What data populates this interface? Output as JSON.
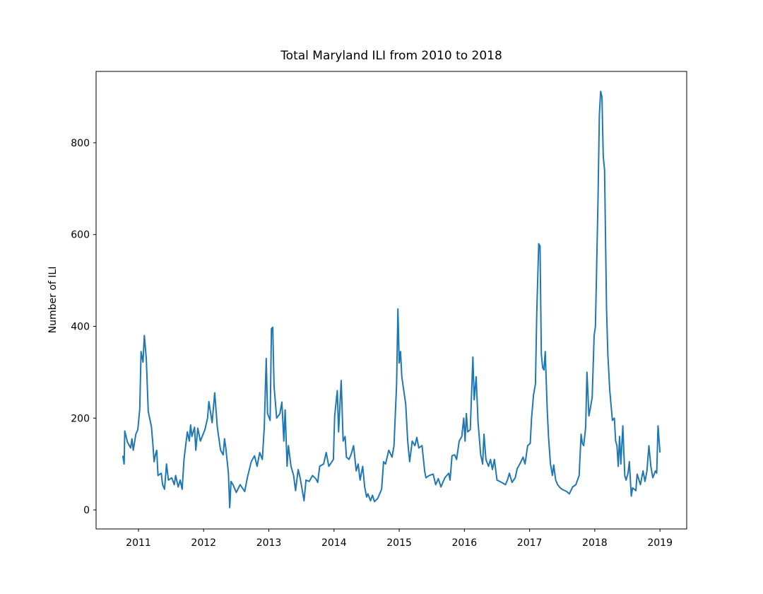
{
  "chart_data": {
    "type": "line",
    "title": "Total Maryland ILI from 2010 to 2018",
    "ylabel": "Number of ILI",
    "color": "#1f77b4",
    "xlim": [
      2010.35,
      2019.41
    ],
    "xticks": [
      2011,
      2012,
      2013,
      2014,
      2015,
      2016,
      2017,
      2018,
      2019
    ],
    "ylim": [
      -41.5,
      955.5
    ],
    "yticks": [
      0,
      200,
      400,
      600,
      800
    ],
    "x": [
      2010.76,
      2010.78,
      2010.79,
      2010.83,
      2010.88,
      2010.9,
      2010.92,
      2010.96,
      2010.99,
      2011.02,
      2011.04,
      2011.07,
      2011.09,
      2011.12,
      2011.15,
      2011.2,
      2011.22,
      2011.24,
      2011.26,
      2011.28,
      2011.3,
      2011.35,
      2011.37,
      2011.4,
      2011.43,
      2011.46,
      2011.51,
      2011.55,
      2011.57,
      2011.61,
      2011.64,
      2011.67,
      2011.7,
      2011.75,
      2011.78,
      2011.8,
      2011.82,
      2011.86,
      2011.88,
      2011.91,
      2011.95,
      2012.02,
      2012.06,
      2012.08,
      2012.13,
      2012.17,
      2012.21,
      2012.26,
      2012.3,
      2012.32,
      2012.34,
      2012.38,
      2012.4,
      2012.42,
      2012.45,
      2012.5,
      2012.56,
      2012.63,
      2012.67,
      2012.73,
      2012.78,
      2012.82,
      2012.86,
      2012.9,
      2012.93,
      2012.96,
      2012.98,
      2013.02,
      2013.04,
      2013.06,
      2013.08,
      2013.12,
      2013.17,
      2013.2,
      2013.23,
      2013.25,
      2013.28,
      2013.3,
      2013.34,
      2013.38,
      2013.41,
      2013.45,
      2013.48,
      2013.54,
      2013.57,
      2013.62,
      2013.67,
      2013.72,
      2013.75,
      2013.78,
      2013.84,
      2013.88,
      2013.92,
      2013.99,
      2014.01,
      2014.05,
      2014.07,
      2014.11,
      2014.14,
      2014.17,
      2014.19,
      2014.23,
      2014.26,
      2014.3,
      2014.34,
      2014.37,
      2014.4,
      2014.44,
      2014.47,
      2014.5,
      2014.52,
      2014.56,
      2014.59,
      2014.62,
      2014.67,
      2014.73,
      2014.76,
      2014.79,
      2014.84,
      2014.89,
      2014.92,
      2014.96,
      2014.98,
      2015.0,
      2015.02,
      2015.04,
      2015.1,
      2015.13,
      2015.16,
      2015.2,
      2015.24,
      2015.27,
      2015.3,
      2015.35,
      2015.39,
      2015.41,
      2015.46,
      2015.52,
      2015.56,
      2015.6,
      2015.64,
      2015.7,
      2015.76,
      2015.78,
      2015.81,
      2015.85,
      2015.88,
      2015.92,
      2015.96,
      2015.99,
      2016.01,
      2016.03,
      2016.05,
      2016.09,
      2016.13,
      2016.15,
      2016.18,
      2016.21,
      2016.25,
      2016.28,
      2016.3,
      2016.33,
      2016.37,
      2016.4,
      2016.43,
      2016.46,
      2016.5,
      2016.57,
      2016.63,
      2016.66,
      2016.69,
      2016.73,
      2016.78,
      2016.81,
      2016.85,
      2016.9,
      2016.93,
      2016.97,
      2017.01,
      2017.03,
      2017.06,
      2017.09,
      2017.11,
      2017.14,
      2017.16,
      2017.18,
      2017.2,
      2017.22,
      2017.24,
      2017.27,
      2017.29,
      2017.32,
      2017.35,
      2017.37,
      2017.4,
      2017.43,
      2017.47,
      2017.51,
      2017.57,
      2017.61,
      2017.66,
      2017.71,
      2017.76,
      2017.79,
      2017.81,
      2017.83,
      2017.86,
      2017.88,
      2017.91,
      2017.93,
      2017.96,
      2017.99,
      2018.01,
      2018.05,
      2018.07,
      2018.09,
      2018.11,
      2018.13,
      2018.15,
      2018.18,
      2018.2,
      2018.23,
      2018.27,
      2018.3,
      2018.32,
      2018.34,
      2018.36,
      2018.38,
      2018.4,
      2018.43,
      2018.46,
      2018.48,
      2018.51,
      2018.53,
      2018.56,
      2018.58,
      2018.63,
      2018.65,
      2018.7,
      2018.74,
      2018.77,
      2018.8,
      2018.83,
      2018.86,
      2018.89,
      2018.93,
      2018.95,
      2018.97,
      2019.0
    ],
    "values": [
      118,
      100,
      172,
      148,
      135,
      155,
      130,
      165,
      175,
      220,
      345,
      322,
      380,
      330,
      215,
      180,
      145,
      105,
      120,
      130,
      75,
      80,
      55,
      45,
      100,
      65,
      70,
      55,
      75,
      50,
      65,
      45,
      112,
      170,
      150,
      185,
      160,
      180,
      130,
      178,
      150,
      175,
      200,
      236,
      190,
      255,
      180,
      130,
      120,
      155,
      135,
      80,
      5,
      62,
      55,
      38,
      55,
      40,
      70,
      105,
      118,
      95,
      125,
      110,
      180,
      330,
      210,
      195,
      395,
      398,
      270,
      200,
      210,
      235,
      150,
      218,
      95,
      140,
      95,
      75,
      42,
      88,
      70,
      20,
      65,
      62,
      75,
      68,
      60,
      95,
      100,
      125,
      95,
      110,
      205,
      260,
      170,
      282,
      150,
      160,
      115,
      110,
      120,
      140,
      85,
      100,
      65,
      95,
      50,
      28,
      35,
      20,
      32,
      18,
      25,
      45,
      105,
      100,
      130,
      115,
      140,
      275,
      438,
      320,
      345,
      290,
      230,
      150,
      105,
      150,
      140,
      158,
      135,
      140,
      85,
      70,
      75,
      78,
      55,
      68,
      50,
      70,
      80,
      65,
      118,
      120,
      110,
      150,
      160,
      200,
      150,
      210,
      170,
      175,
      333,
      240,
      290,
      190,
      120,
      100,
      165,
      110,
      95,
      110,
      88,
      110,
      65,
      60,
      55,
      65,
      80,
      60,
      70,
      90,
      100,
      115,
      100,
      140,
      145,
      200,
      250,
      275,
      430,
      580,
      575,
      340,
      310,
      305,
      345,
      220,
      160,
      100,
      75,
      98,
      65,
      55,
      48,
      44,
      40,
      35,
      50,
      55,
      75,
      165,
      145,
      140,
      180,
      300,
      205,
      220,
      245,
      380,
      400,
      680,
      860,
      912,
      900,
      770,
      740,
      440,
      340,
      260,
      195,
      200,
      150,
      140,
      95,
      160,
      100,
      183,
      75,
      65,
      80,
      105,
      30,
      48,
      42,
      78,
      55,
      85,
      62,
      85,
      140,
      95,
      70,
      85,
      80,
      183,
      125
    ]
  }
}
